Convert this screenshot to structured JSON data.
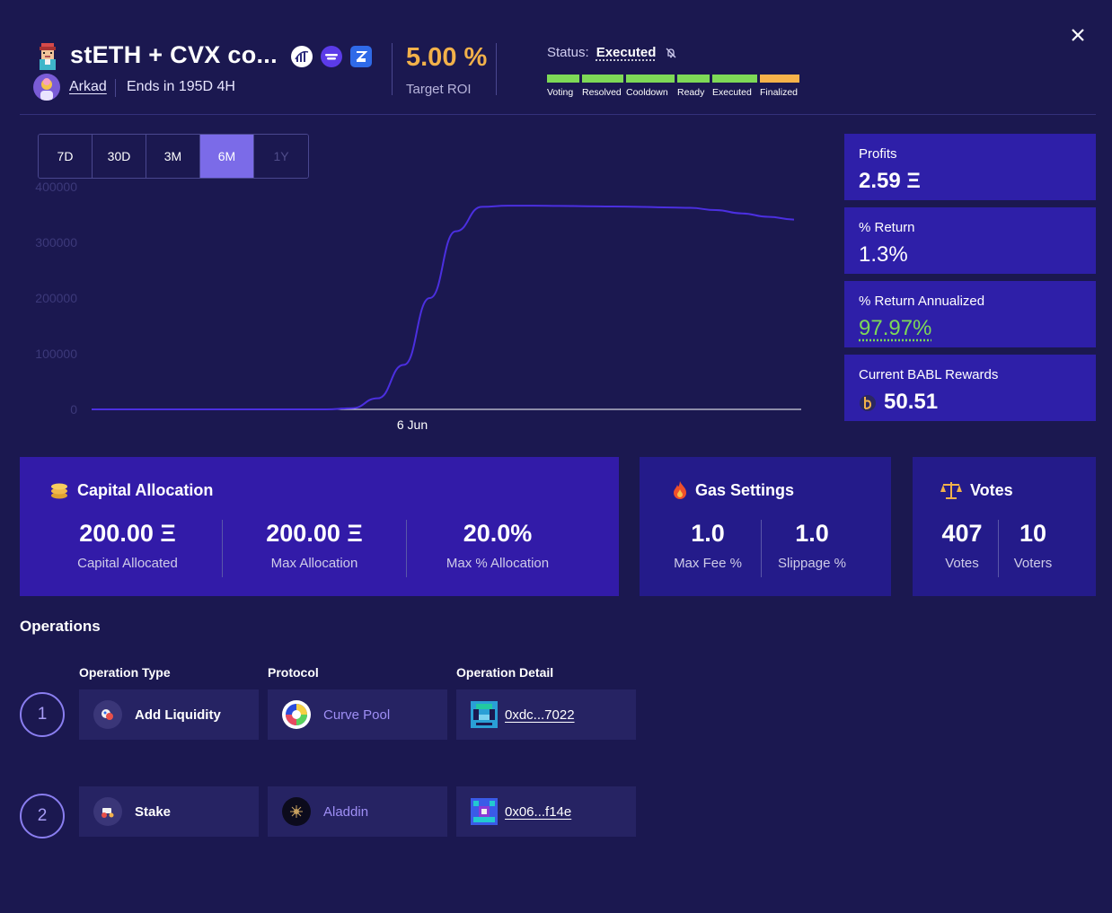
{
  "header": {
    "title": "stETH + CVX co...",
    "creator": "Arkad",
    "ends": "Ends in 195D 4H",
    "target_roi_value": "5.00 %",
    "target_roi_label": "Target ROI",
    "status_label": "Status:",
    "status_value": "Executed",
    "stages": [
      {
        "label": "Voting",
        "color": "#7ed957"
      },
      {
        "label": "Resolved",
        "color": "#7ed957"
      },
      {
        "label": "Cooldown",
        "color": "#7ed957"
      },
      {
        "label": "Ready",
        "color": "#7ed957"
      },
      {
        "label": "Executed",
        "color": "#7ed957"
      },
      {
        "label": "Finalized",
        "color": "#f7b24a"
      }
    ]
  },
  "range_tabs": [
    "7D",
    "30D",
    "3M",
    "6M",
    "1Y"
  ],
  "active_range": "6M",
  "chart_data": {
    "type": "line",
    "x_tick_labels": [
      "6 Jun"
    ],
    "y_ticks": [
      "400000",
      "300000",
      "200000",
      "100000",
      "0"
    ],
    "ylim": [
      0,
      400000
    ],
    "series": [
      {
        "values": [
          0,
          0,
          0,
          0,
          0,
          0,
          0,
          0,
          0,
          0,
          2000,
          20000,
          80000,
          200000,
          320000,
          364000,
          366000,
          366000,
          365500,
          365000,
          364500,
          364000,
          363000,
          362000,
          358000,
          352000,
          346000,
          341000
        ]
      }
    ],
    "color": "#4b2fe0"
  },
  "stats": [
    {
      "label": "Profits",
      "value": "2.59 Ξ"
    },
    {
      "label": "% Return",
      "value": "1.3%"
    },
    {
      "label": "% Return Annualized",
      "value": "97.97%"
    },
    {
      "label": "Current BABL Rewards",
      "value": "50.51"
    }
  ],
  "capital": {
    "title": "Capital Allocation",
    "metrics": [
      {
        "num": "200.00 Ξ",
        "cap": "Capital Allocated"
      },
      {
        "num": "200.00 Ξ",
        "cap": "Max Allocation"
      },
      {
        "num": "20.0%",
        "cap": "Max % Allocation"
      }
    ]
  },
  "gas": {
    "title": "Gas Settings",
    "metrics": [
      {
        "num": "1.0",
        "cap": "Max Fee %"
      },
      {
        "num": "1.0",
        "cap": "Slippage %"
      }
    ]
  },
  "votes": {
    "title": "Votes",
    "metrics": [
      {
        "num": "407",
        "cap": "Votes"
      },
      {
        "num": "10",
        "cap": "Voters"
      }
    ]
  },
  "operations": {
    "title": "Operations",
    "headers": [
      "Operation Type",
      "Protocol",
      "Operation Detail"
    ],
    "rows": [
      {
        "step": "1",
        "type": "Add Liquidity",
        "protocol": "Curve Pool",
        "detail": "0xdc...7022"
      },
      {
        "step": "2",
        "type": "Stake",
        "protocol": "Aladdin",
        "detail": "0x06...f14e"
      }
    ]
  }
}
